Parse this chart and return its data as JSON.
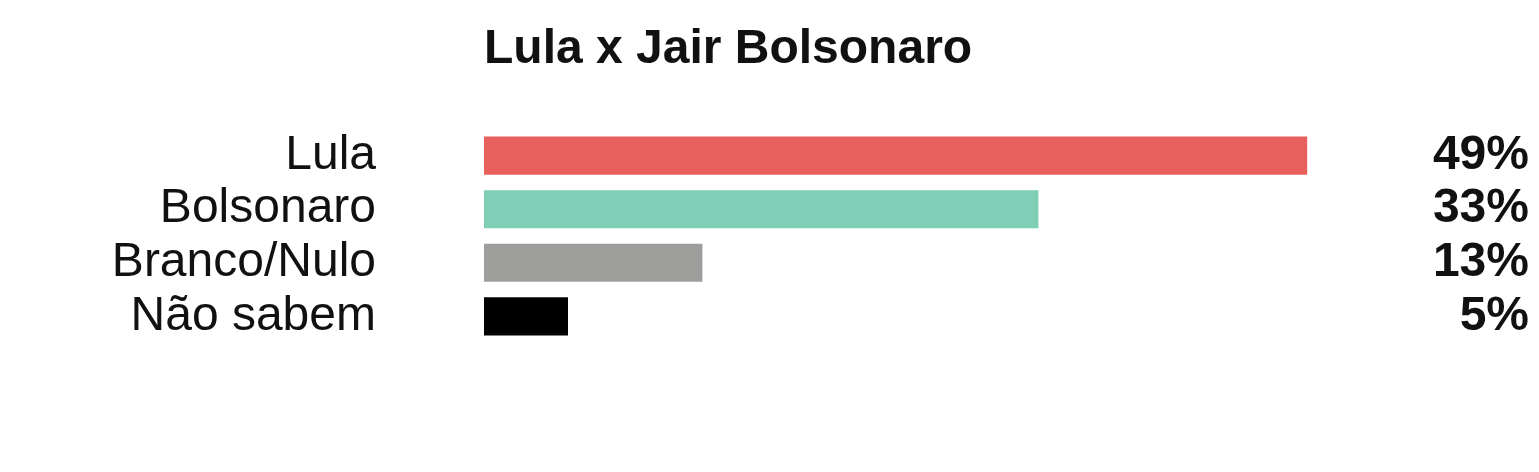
{
  "chart_data": {
    "type": "bar",
    "orientation": "horizontal",
    "title": "Lula x Jair Bolsonaro",
    "categories": [
      "Lula",
      "Bolsonaro",
      "Branco/Nulo",
      "Não sabem"
    ],
    "values": [
      49,
      33,
      13,
      5
    ],
    "value_labels": [
      "49%",
      "33%",
      "13%",
      "5%"
    ],
    "colors": [
      "#e8605c",
      "#7ecfb6",
      "#9e9e9c",
      "#000000"
    ],
    "tick_labels": "y",
    "grid": false,
    "legend": false
  }
}
